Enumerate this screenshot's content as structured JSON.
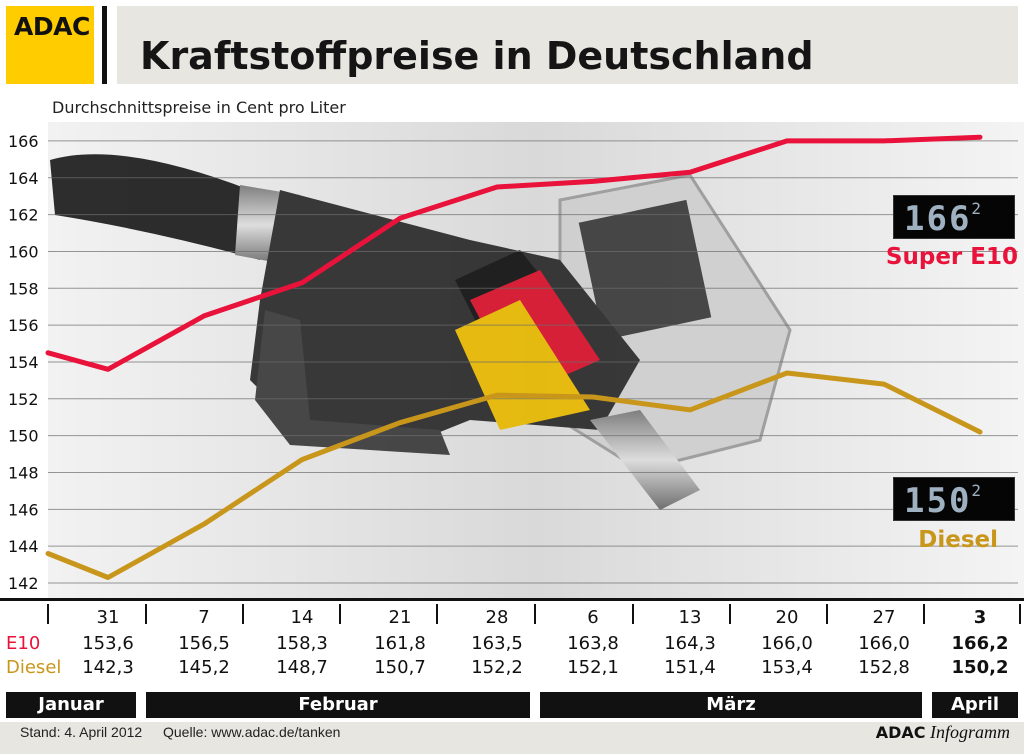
{
  "header": {
    "logo_text": "ADAC",
    "title": "Kraftstoffpreise in Deutschland",
    "subtitle": "Durchschnittspreise in Cent pro Liter"
  },
  "colors": {
    "e10": "#e8123a",
    "diesel": "#c9961c",
    "logo": "#ffcc00",
    "band": "#e7e6e1"
  },
  "chart_data": {
    "type": "line",
    "title": "Kraftstoffpreise in Deutschland",
    "ylabel": "Durchschnittspreise in Cent pro Liter",
    "ylim": [
      141,
      167
    ],
    "yticks": [
      142,
      144,
      146,
      148,
      150,
      152,
      154,
      156,
      158,
      160,
      162,
      164,
      166
    ],
    "grid": true,
    "categories": [
      "31",
      "7",
      "14",
      "21",
      "28",
      "6",
      "13",
      "20",
      "27",
      "3"
    ],
    "series": [
      {
        "name": "E10",
        "values": [
          153.6,
          156.5,
          158.3,
          161.8,
          163.5,
          163.8,
          164.3,
          166.0,
          166.0,
          166.2
        ]
      },
      {
        "name": "Diesel",
        "values": [
          142.3,
          145.2,
          148.7,
          150.7,
          152.2,
          152.1,
          151.4,
          153.4,
          152.8,
          150.2
        ]
      }
    ],
    "row_labels": [
      "E10",
      "Diesel"
    ],
    "table_e10": [
      "153,6",
      "156,5",
      "158,3",
      "161,8",
      "163,5",
      "163,8",
      "164,3",
      "166,0",
      "166,0",
      "166,2"
    ],
    "table_diesel": [
      "142,3",
      "145,2",
      "148,7",
      "150,7",
      "152,2",
      "152,1",
      "151,4",
      "153,4",
      "152,8",
      "150,2"
    ],
    "months": [
      "Januar",
      "Februar",
      "März",
      "April"
    ]
  },
  "displays": {
    "e10_value": "166",
    "e10_decimal": "2",
    "diesel_value": "150",
    "diesel_decimal": "2"
  },
  "legend": {
    "e10": "Super E10",
    "diesel": "Diesel"
  },
  "footer": {
    "stand": "Stand: 4. April 2012",
    "quelle": "Quelle: www.adac.de/tanken",
    "brand_bold": "ADAC",
    "brand_italic": "Infogramm"
  }
}
